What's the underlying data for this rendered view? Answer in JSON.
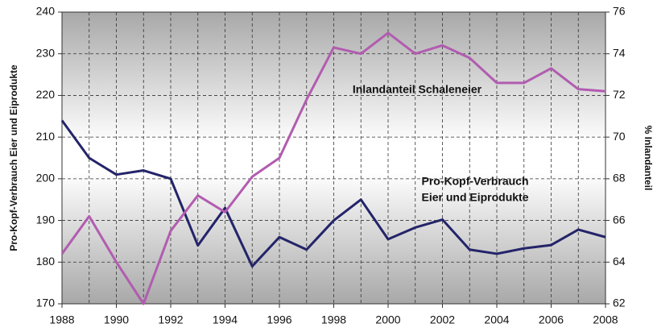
{
  "chart_data": {
    "type": "line",
    "x": [
      1988,
      1989,
      1990,
      1991,
      1992,
      1993,
      1994,
      1995,
      1996,
      1997,
      1998,
      1999,
      2000,
      2001,
      2002,
      2003,
      2004,
      2005,
      2006,
      2007,
      2008
    ],
    "series": [
      {
        "name": "Pro-Kopf-Verbrauch Eier und Eiprodukte",
        "color": "#24246a",
        "axis": "y",
        "values": [
          214,
          205,
          201,
          202,
          200,
          184,
          193,
          179,
          186,
          183,
          190,
          195,
          185.5,
          188.3,
          190.2,
          183,
          182,
          183.3,
          184.1,
          187.8,
          186
        ]
      },
      {
        "name": "Inlandanteil Schaleneier",
        "color": "#b25cb0",
        "axis": "y2",
        "values": [
          64.4,
          66.2,
          64.0,
          62.0,
          65.5,
          67.2,
          66.4,
          68.1,
          69.0,
          71.8,
          74.3,
          74.0,
          75.0,
          74.0,
          74.4,
          73.8,
          72.6,
          72.6,
          73.3,
          72.3,
          72.2
        ]
      }
    ],
    "xlim": [
      1988,
      2008
    ],
    "xticks": [
      1988,
      1990,
      1992,
      1994,
      1996,
      1998,
      2000,
      2002,
      2004,
      2006,
      2008
    ],
    "ylim": [
      170,
      240
    ],
    "yticks": [
      170,
      180,
      190,
      200,
      210,
      220,
      230,
      240
    ],
    "y2lim": [
      62,
      76
    ],
    "y2ticks": [
      62,
      64,
      66,
      68,
      70,
      72,
      74,
      76
    ],
    "ylabel": "Pro-Kopf-Verbrauch Eier und Eiprodukte",
    "y2label": "% Inlandanteil",
    "annotations": [
      "Inlandanteil Schaleneier",
      "Pro-Kopf-Verbrauch",
      "Eier und Eiprodukte"
    ],
    "grid": true
  }
}
